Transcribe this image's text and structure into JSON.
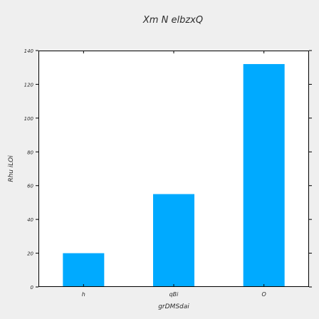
{
  "chart_data": {
    "type": "bar",
    "title": "Xm  N elbzxQ",
    "xlabel": "grDMSdai",
    "ylabel": "Rhu iLOi",
    "categories": [
      "h",
      "qBi",
      "O"
    ],
    "values": [
      20,
      55,
      132
    ],
    "ylim": [
      0,
      140
    ],
    "yticks": [
      "0",
      "20",
      "40",
      "60",
      "80",
      "100",
      "120",
      "140"
    ],
    "bar_color": "#00aaff",
    "grid": false
  }
}
